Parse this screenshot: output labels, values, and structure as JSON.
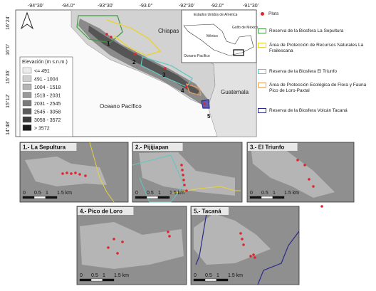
{
  "map": {
    "lon_labels": [
      "-94°30'",
      "-94.0°",
      "-93°30'",
      "-93.0°",
      "-92°30'",
      "-92.0°",
      "-91°30'"
    ],
    "lat_labels": [
      "16°24'",
      "16°0'",
      "15°36'",
      "15°12'",
      "14°48'"
    ],
    "state": "Chiapas",
    "country": "Guatemala",
    "ocean": "Oceano Pacífico",
    "site_numbers": [
      "1",
      "2",
      "3",
      "4",
      "5"
    ]
  },
  "inset": {
    "usa": "Estados Unidos de América",
    "mexico": "México",
    "gulf": "Golfo de México",
    "ocean": "Oceano Pacífico"
  },
  "elevation_legend": {
    "title": "Elevación (m s.n.m.)",
    "classes": [
      {
        "label": "<= 491",
        "color": "#ececec"
      },
      {
        "label": "491 - 1004",
        "color": "#d0d0d0"
      },
      {
        "label": "1004 - 1518",
        "color": "#b4b4b4"
      },
      {
        "label": "1518 - 2031",
        "color": "#989898"
      },
      {
        "label": "2031 - 2545",
        "color": "#7a7a7a"
      },
      {
        "label": "2545 - 3058",
        "color": "#5c5c5c"
      },
      {
        "label": "3058 - 3572",
        "color": "#3c3c3c"
      },
      {
        "label": "> 3572",
        "color": "#1a1a1a"
      }
    ]
  },
  "legend": {
    "plots": {
      "label": "Plots",
      "color": "#e0242b"
    },
    "areas": [
      {
        "label": "Reserva de la Biosfera La Sepultura",
        "color": "#3e9b3e"
      },
      {
        "label": "Área de Protección de Recursos Naturales La Frailescana",
        "color": "#e8d33a"
      },
      {
        "label": "Reserva de la Biosfera El Triunfo",
        "color": "#5fc8c0"
      },
      {
        "label": "Área de Protección Ecológica de Flora y Fauna Pico de Loro-Paxtal",
        "color": "#e8a060"
      },
      {
        "label": "Reserva de la Biosfera Volcán Tacaná",
        "color": "#2a2a8a"
      }
    ]
  },
  "panels": [
    {
      "title": "1.- La Sepultura",
      "scale": [
        "0",
        "0.5",
        "1",
        "1.5 km"
      ]
    },
    {
      "title": "2.- Pijijiapan",
      "scale": [
        "0",
        "0.5",
        "1",
        "1.5 km"
      ]
    },
    {
      "title": "3.- El Triunfo",
      "scale": [
        "0",
        "0.5",
        "1",
        "1.5 km"
      ]
    },
    {
      "title": "4.- Pico de Loro",
      "scale": [
        "0",
        "0.5",
        "1",
        "1.5 km"
      ]
    },
    {
      "title": "5.- Tacaná",
      "scale": [
        "0",
        "0.5",
        "1",
        "1.5 km"
      ]
    }
  ]
}
